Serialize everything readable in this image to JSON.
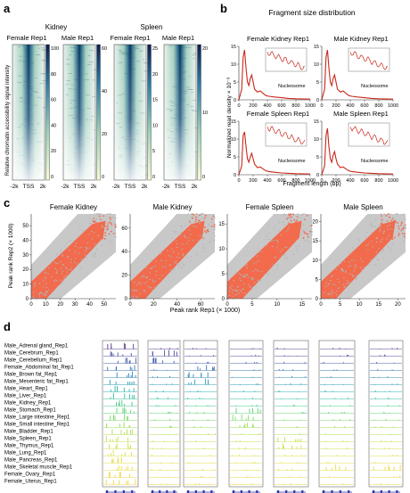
{
  "panels": {
    "a": {
      "letter": "a",
      "groups": [
        "Kidney",
        "Spleen"
      ],
      "columns": [
        "Female Rep1",
        "Male Rep1",
        "Female Rep1",
        "Male Rep1"
      ],
      "ylabel": "Relative chromatin accessibility signal intensity",
      "xticks": [
        "-2k",
        "TSS",
        "2k"
      ],
      "cbar_ticks": [
        [
          "100",
          "80",
          "60",
          "40",
          "20",
          "0"
        ],
        [
          "60",
          "40",
          "20",
          "0"
        ],
        [
          "25",
          "20",
          "15",
          "10",
          "5",
          "0"
        ],
        [
          "20",
          "10",
          "0"
        ]
      ]
    },
    "b": {
      "letter": "b",
      "title": "Fragment size distribution",
      "subtitles": [
        "Female Kidney Rep1",
        "Male Kidney Rep1",
        "Female Spleen Rep1",
        "Male Spleen Rep1"
      ],
      "ylabel": "Normalized read density × 10⁻³",
      "xlabel": "Fragment length (bp)",
      "xticks": [
        "0",
        "200",
        "400",
        "600",
        "800",
        "1000"
      ],
      "yticks": [
        "15",
        "10",
        "5",
        "0"
      ],
      "nucleosome_label": "Nucleosome"
    },
    "c": {
      "letter": "c",
      "titles": [
        "Female Kidney",
        "Male Kidney",
        "Female Spleen",
        "Male Spleen"
      ],
      "ylabel": "Peak rank Rep2 (× 1000)",
      "xlabel": "Peak rank Rep1 (× 1000)",
      "accent": "#f26b4d",
      "background_color": "#c8c8c8"
    },
    "d": {
      "letter": "d",
      "tracks": [
        "Male_Adrenal gland_Rep1",
        "Male_Cerebrum_Rep1",
        "Male_Cerebellum_Rep1",
        "Female_Abdominal fat_Rep1",
        "Male_Brown fat_Rep1",
        "Male_Mesenteric fat_Rep1",
        "Male_Heart_Rep1",
        "Male_Liver_Rep1",
        "Male_Kidney_Rep1",
        "Male_Stomach_Rep1",
        "Male_Large intestine_Rep1",
        "Male_Small intestine_Rep1",
        "Male_Bladder_Rep1",
        "Male_Spleen_Rep1",
        "Male_Thymus_Rep1",
        "Male_Lung_Rep1",
        "Male_Pancreas_Rep1",
        "Male_Skeletal muscle_Rep1",
        "Female_Ovary_Rep1",
        "Female_Uterus_Rep1"
      ],
      "genes": [
        "Gapdh",
        "Grin1",
        "Adipoq",
        "Guca2b",
        "Cd8a",
        "Nccrp1",
        "Atp2a1"
      ]
    }
  },
  "chart_data": [
    {
      "type": "line",
      "title": "Female Kidney Rep1",
      "xlabel": "Fragment length (bp)",
      "ylabel": "Normalized read density × 10⁻³",
      "xlim": [
        0,
        1000
      ],
      "ylim": [
        0,
        15
      ],
      "series": [
        {
          "x": [
            0,
            40,
            60,
            80,
            100,
            120,
            140,
            160,
            180,
            200,
            220,
            260,
            300,
            340,
            380,
            420,
            500,
            600,
            700,
            800,
            1000
          ],
          "y": [
            0,
            3,
            12,
            14,
            9,
            5,
            4,
            6,
            7,
            5,
            3,
            2.2,
            2.5,
            1.8,
            1.2,
            1,
            0.8,
            0.6,
            0.4,
            0.3,
            0.2
          ]
        }
      ]
    },
    {
      "type": "line",
      "title": "Male Kidney Rep1",
      "xlabel": "Fragment length (bp)",
      "ylabel": "Normalized read density × 10⁻³",
      "xlim": [
        0,
        1000
      ],
      "ylim": [
        0,
        15
      ],
      "series": [
        {
          "x": [
            0,
            40,
            60,
            80,
            100,
            120,
            140,
            160,
            180,
            200,
            220,
            260,
            300,
            340,
            380,
            420,
            500,
            600,
            700,
            800,
            1000
          ],
          "y": [
            0,
            3,
            12,
            14,
            9,
            5,
            4,
            6,
            7,
            5,
            3,
            2.2,
            2.5,
            1.8,
            1.2,
            1,
            0.8,
            0.6,
            0.4,
            0.3,
            0.2
          ]
        }
      ]
    },
    {
      "type": "line",
      "title": "Female Spleen Rep1",
      "xlabel": "Fragment length (bp)",
      "ylabel": "Normalized read density × 10⁻³",
      "xlim": [
        0,
        1000
      ],
      "ylim": [
        0,
        15
      ],
      "series": [
        {
          "x": [
            0,
            40,
            60,
            80,
            100,
            120,
            140,
            160,
            180,
            200,
            220,
            260,
            300,
            340,
            380,
            420,
            500,
            600,
            700,
            800,
            1000
          ],
          "y": [
            0,
            2.5,
            11,
            12,
            8,
            4.5,
            3.5,
            5,
            6,
            4.5,
            3,
            2,
            2.2,
            1.6,
            1.1,
            0.9,
            0.7,
            0.5,
            0.4,
            0.3,
            0.2
          ]
        }
      ]
    },
    {
      "type": "line",
      "title": "Male Spleen Rep1",
      "xlabel": "Fragment length (bp)",
      "ylabel": "Normalized read density × 10⁻³",
      "xlim": [
        0,
        1000
      ],
      "ylim": [
        0,
        15
      ],
      "series": [
        {
          "x": [
            0,
            40,
            60,
            80,
            100,
            120,
            140,
            160,
            180,
            200,
            220,
            260,
            300,
            340,
            380,
            420,
            500,
            600,
            700,
            800,
            1000
          ],
          "y": [
            0,
            2.5,
            11,
            13,
            8,
            4.5,
            3.5,
            5.5,
            6.5,
            4.5,
            3,
            2,
            2.2,
            1.6,
            1.1,
            0.9,
            0.7,
            0.5,
            0.4,
            0.3,
            0.2
          ]
        }
      ]
    },
    {
      "type": "scatter",
      "title": "Female Kidney",
      "xlabel": "Peak rank Rep1 (× 1000)",
      "ylabel": "Peak rank Rep2 (× 1000)",
      "xlim": [
        0,
        58
      ],
      "ylim": [
        0,
        58
      ],
      "xticks": [
        0,
        10,
        20,
        30,
        40,
        50
      ],
      "yticks": [
        0,
        10,
        20,
        30,
        40,
        50
      ]
    },
    {
      "type": "scatter",
      "title": "Male Kidney",
      "xlabel": "Peak rank Rep1 (× 1000)",
      "ylabel": "Peak rank Rep2 (× 1000)",
      "xlim": [
        0,
        72
      ],
      "ylim": [
        0,
        72
      ],
      "xticks": [
        0,
        20,
        40,
        60
      ],
      "yticks": [
        0,
        20,
        40,
        60
      ]
    },
    {
      "type": "scatter",
      "title": "Female Spleen",
      "xlabel": "Peak rank Rep1 (× 1000)",
      "ylabel": "Peak rank Rep2 (× 1000)",
      "xlim": [
        0,
        17
      ],
      "ylim": [
        0,
        17
      ],
      "xticks": [
        0,
        5,
        10,
        15
      ],
      "yticks": [
        0,
        5,
        10,
        15
      ]
    },
    {
      "type": "scatter",
      "title": "Male Spleen",
      "xlabel": "Peak rank Rep1 (× 1000)",
      "ylabel": "Peak rank Rep2 (× 1000)",
      "xlim": [
        0,
        22
      ],
      "ylim": [
        0,
        22
      ],
      "xticks": [
        0,
        5,
        10,
        15,
        20
      ],
      "yticks": [
        0,
        5,
        10,
        15,
        20
      ]
    }
  ]
}
